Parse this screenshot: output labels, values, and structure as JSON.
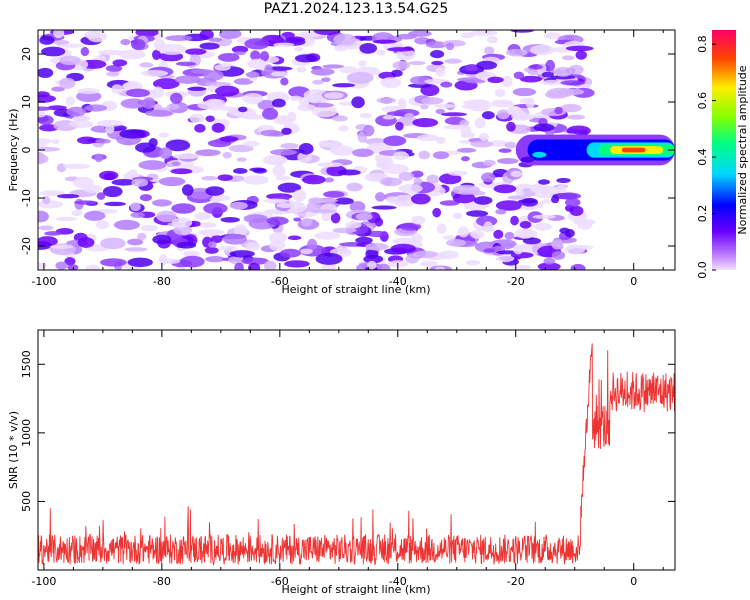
{
  "title": "PAZ1.2024.123.13.54.G25",
  "chart_data": [
    {
      "type": "heatmap",
      "xlabel": "Height of straight line (km)",
      "ylabel": "Frequency (Hz)",
      "xlim": [
        -101,
        7
      ],
      "ylim": [
        -25,
        25
      ],
      "xticks": [
        -100,
        -80,
        -60,
        -40,
        -20,
        0
      ],
      "yticks": [
        -20,
        -10,
        0,
        10,
        20
      ],
      "colorbar": {
        "label": "Normalized spectral amplitude",
        "range": [
          0,
          0.85
        ],
        "ticks": [
          "0.0",
          "0.2",
          "0.4",
          "0.6",
          "0.8"
        ],
        "colormap": "rainbow (purple-blue-cyan-green-yellow-red-magenta)"
      },
      "features": "diffuse low-amplitude purple blobs (0.05-0.15) across -101 to -10 km, all frequencies; strong narrow band near 0 Hz from about -20 km to 7 km, peak ~0.8 near 0 km"
    },
    {
      "type": "line",
      "xlabel": "Height of straight line (km)",
      "ylabel": "SNR (10 * v/v)",
      "xlim": [
        -101,
        7
      ],
      "ylim": [
        0,
        1750
      ],
      "xticks": [
        -100,
        -80,
        -60,
        -40,
        -20,
        0
      ],
      "yticks": [
        500,
        1000,
        1500
      ],
      "color": "#ee3333",
      "segments": [
        {
          "x_start": -101,
          "x_end": -9,
          "level": 150,
          "noise": 110
        },
        {
          "x_start": -9,
          "x_end": -7,
          "level": 1700,
          "noise": 100
        },
        {
          "x_start": -7,
          "x_end": -4,
          "level": 1050,
          "noise": 180
        },
        {
          "x_start": -4,
          "x_end": 7,
          "level": 1300,
          "noise": 150
        }
      ]
    }
  ],
  "colors": {
    "text": "#000000",
    "line": "#ee3333"
  }
}
